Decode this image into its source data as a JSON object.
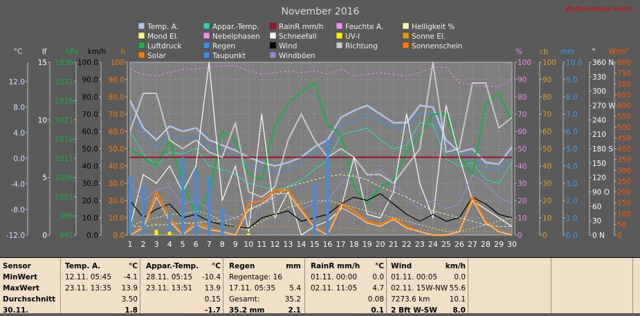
{
  "header": {
    "title": "November 2016",
    "corner_text": "Wetterstation Helm"
  },
  "legend": [
    {
      "label": "Temp. A.",
      "color": "#b0c4f0"
    },
    {
      "label": "Appar.-Temp.",
      "color": "#2ad4b0"
    },
    {
      "label": "RainR mm/h",
      "color": "#a0102a"
    },
    {
      "label": "Feuchte A.",
      "color": "#f08cf0"
    },
    {
      "label": "Helligkeit %",
      "color": "#ffffb0"
    },
    {
      "label": "Mond El.",
      "color": "#ffff88"
    },
    {
      "label": "Nebelphasen",
      "color": "#f08cf0"
    },
    {
      "label": "Schneefall",
      "color": "#ffffff"
    },
    {
      "label": "UV-I",
      "color": "#ffee00"
    },
    {
      "label": "Sonne El.",
      "color": "#e09a10"
    },
    {
      "label": "Luftdruck",
      "color": "#18b048"
    },
    {
      "label": "Regen",
      "color": "#3a8ee8"
    },
    {
      "label": "Wind",
      "color": "#000000"
    },
    {
      "label": "Richtung",
      "color": "#c8c8c8"
    },
    {
      "label": "Sonnenschein",
      "color": "#ff7a00"
    },
    {
      "label": "Solar",
      "color": "#ff7a00"
    },
    {
      "label": "Taupunkt",
      "color": "#3a8ee8"
    },
    {
      "label": "Windböen",
      "color": "#8c8cd0"
    }
  ],
  "axes": {
    "temp": {
      "unit": "°C",
      "color": "#cce0ff",
      "ticks": [
        "12.0",
        "8.0",
        "4.0",
        "0.0",
        "-4.0",
        "-8.0",
        "-12.0"
      ]
    },
    "lf": {
      "unit": "lf",
      "color": "#ffffff",
      "ticks": [
        "15",
        "10",
        "5",
        "0"
      ]
    },
    "hpa": {
      "unit": "hPa",
      "color": "#18b048",
      "ticks": [
        "1036",
        "1031",
        "1026",
        "1021",
        "1016",
        "1011",
        "1006",
        "1001",
        "996",
        "991"
      ]
    },
    "kmh": {
      "unit": "km/h",
      "color": "#000000",
      "ticks": [
        "100.0",
        "90.0",
        "80.0",
        "70.0",
        "60.0",
        "50.0",
        "40.0",
        "30.0",
        "20.0",
        "10.0",
        "0.0"
      ]
    },
    "h": {
      "unit": "h",
      "color": "#ff7a00",
      "ticks": [
        "100",
        "90.0",
        "80.0",
        "70.0",
        "60.0",
        "50.0",
        "40.0",
        "30.0",
        "20.0",
        "10.0",
        "0.0"
      ]
    },
    "pct": {
      "unit": "%",
      "color": "#f08cf0",
      "ticks": [
        "100",
        "90",
        "80",
        "70",
        "60",
        "50",
        "40",
        "30",
        "20",
        "10",
        "0"
      ]
    },
    "cb": {
      "unit": "cb",
      "color": "#e0a020",
      "ticks": [
        "100",
        "90",
        "80",
        "70",
        "60",
        "50",
        "40",
        "30",
        "20",
        "10",
        "0"
      ]
    },
    "mm": {
      "unit": "mm",
      "color": "#3a9ef0",
      "ticks": [
        "10.0",
        "9.0",
        "8.0",
        "7.0",
        "6.0",
        "5.0",
        "4.0",
        "3.0",
        "2.0",
        "1.0",
        "0.0"
      ]
    },
    "deg": {
      "unit": "°",
      "color": "#ffffff",
      "ticks": [
        "360 N",
        "330",
        "300",
        "270 W",
        "240",
        "210",
        "180 S",
        "150",
        "120",
        "90 O",
        "60",
        "30",
        "0 N"
      ]
    },
    "wm2": {
      "unit": "W/m²",
      "color": "#ff5a00",
      "ticks": [
        "800",
        "750",
        "700",
        "650",
        "600",
        "550",
        "500",
        "450",
        "400",
        "350",
        "300",
        "250",
        "200",
        "150",
        "100",
        "50",
        "0"
      ]
    }
  },
  "chart_data": {
    "type": "line",
    "title": "November 2016",
    "x": [
      "1",
      "2",
      "3",
      "4",
      "5",
      "6",
      "7",
      "8",
      "9",
      "10",
      "11",
      "12",
      "13",
      "14",
      "15",
      "16",
      "17",
      "18",
      "19",
      "20",
      "21",
      "22",
      "23",
      "24",
      "25",
      "26",
      "27",
      "28",
      "29",
      "30"
    ],
    "y_scale": [
      0,
      100
    ],
    "series": [
      {
        "name": "Temp. A.",
        "color": "#b0c4f0",
        "values": [
          78,
          62,
          55,
          63,
          60,
          62,
          55,
          52,
          49,
          45,
          42,
          40,
          42,
          45,
          51,
          55,
          68,
          72,
          75,
          70,
          65,
          65,
          75,
          74,
          55,
          48,
          50,
          42,
          41,
          51
        ]
      },
      {
        "name": "Taupunkt",
        "color": "#3a8ee8",
        "values": [
          70,
          58,
          50,
          58,
          55,
          57,
          50,
          48,
          45,
          40,
          38,
          36,
          38,
          42,
          48,
          52,
          63,
          66,
          70,
          66,
          62,
          62,
          71,
          70,
          50,
          45,
          46,
          38,
          38,
          47
        ]
      },
      {
        "name": "Appar.-Temp.",
        "color": "#2ad4b0",
        "values": [
          60,
          47,
          40,
          48,
          47,
          50,
          40,
          38,
          35,
          30,
          28,
          26,
          28,
          32,
          38,
          43,
          58,
          60,
          62,
          55,
          50,
          52,
          65,
          64,
          44,
          40,
          42,
          32,
          30,
          42
        ]
      },
      {
        "name": "Luftdruck",
        "color": "#18b048",
        "values": [
          50,
          45,
          40,
          55,
          30,
          12,
          25,
          60,
          55,
          35,
          32,
          63,
          76,
          83,
          88,
          64,
          58,
          28,
          18,
          28,
          32,
          48,
          58,
          70,
          70,
          46,
          35,
          76,
          82,
          66
        ]
      },
      {
        "name": "Feuchte A.",
        "color": "#f08cf0",
        "values": [
          96,
          93,
          92,
          94,
          96,
          96,
          97,
          98,
          98,
          95,
          93,
          94,
          95,
          94,
          95,
          93,
          96,
          92,
          93,
          94,
          93,
          92,
          94,
          97,
          97,
          88,
          87,
          86,
          86,
          90
        ]
      },
      {
        "name": "RainR mm/h",
        "color": "#a0102a",
        "values": [
          45,
          45,
          45,
          45,
          45,
          45,
          45,
          45,
          45,
          45,
          45,
          45,
          45,
          45,
          45,
          45,
          45,
          45,
          45,
          45,
          45,
          45,
          45,
          45,
          45,
          45,
          45,
          45,
          45,
          45
        ]
      },
      {
        "name": "Richtung",
        "color": "#c8c8c8",
        "values": [
          60,
          82,
          82,
          55,
          50,
          55,
          48,
          45,
          65,
          25,
          22,
          28,
          55,
          70,
          55,
          45,
          50,
          45,
          35,
          35,
          30,
          40,
          50,
          100,
          48,
          50,
          88,
          88,
          62,
          68
        ]
      },
      {
        "name": "Schneefall",
        "color": "#ffffff",
        "values": [
          5,
          35,
          30,
          40,
          25,
          40,
          100,
          20,
          40,
          2,
          70,
          10,
          25,
          0,
          5,
          8,
          15,
          45,
          12,
          10,
          25,
          70,
          30,
          10,
          75,
          45,
          20,
          15,
          10,
          5
        ]
      },
      {
        "name": "Wind",
        "color": "#000000",
        "values": [
          20,
          10,
          15,
          18,
          10,
          12,
          8,
          6,
          5,
          4,
          10,
          12,
          14,
          8,
          10,
          12,
          18,
          22,
          20,
          24,
          18,
          12,
          8,
          12,
          8,
          10,
          22,
          18,
          12,
          10
        ]
      },
      {
        "name": "Windböen",
        "color": "#8c8cd0",
        "values": [
          30,
          20,
          26,
          28,
          18,
          20,
          15,
          12,
          10,
          8,
          18,
          20,
          24,
          15,
          18,
          20,
          30,
          35,
          32,
          38,
          30,
          22,
          15,
          20,
          15,
          18,
          35,
          30,
          22,
          18
        ]
      },
      {
        "name": "Sonnenschein",
        "color": "#ff7a00",
        "values": [
          0,
          5,
          25,
          10,
          0,
          8,
          4,
          2,
          0,
          18,
          20,
          26,
          26,
          15,
          5,
          0,
          18,
          14,
          8,
          6,
          10,
          5,
          2,
          0,
          0,
          2,
          22,
          8,
          2,
          0
        ]
      },
      {
        "name": "Solar",
        "color": "#ff7a00",
        "values": [
          0,
          4,
          22,
          8,
          0,
          6,
          3,
          2,
          0,
          15,
          18,
          24,
          24,
          14,
          4,
          0,
          16,
          12,
          7,
          5,
          9,
          4,
          2,
          0,
          0,
          2,
          20,
          7,
          2,
          0
        ]
      },
      {
        "name": "Sonne El.",
        "color": "#e09a10",
        "values": [
          8,
          8,
          7,
          7,
          7,
          6,
          6,
          6,
          5,
          5,
          5,
          5,
          5,
          4,
          4,
          4,
          4,
          4,
          3,
          3,
          3,
          3,
          3,
          3,
          3,
          2,
          2,
          2,
          2,
          2
        ]
      },
      {
        "name": "Mond El.",
        "color": "#ffff88",
        "values": [
          5,
          8,
          10,
          12,
          12,
          14,
          12,
          8,
          5,
          3,
          8,
          12,
          16,
          18,
          20,
          20,
          18,
          16,
          14,
          12,
          10,
          8,
          6,
          4,
          2,
          2,
          4,
          6,
          8,
          10
        ]
      },
      {
        "name": "Helligkeit %",
        "color": "#ffffb0",
        "values": [
          5,
          5,
          6,
          6,
          7,
          7,
          8,
          8,
          10,
          14,
          18,
          22,
          28,
          30,
          32,
          34,
          35,
          34,
          32,
          28,
          25,
          22,
          18,
          14,
          12,
          10,
          8,
          6,
          5,
          5
        ]
      },
      {
        "name": "Regen",
        "color": "#3a8ee8",
        "type": "bar",
        "values": [
          34,
          29,
          0,
          13,
          45,
          38,
          34,
          16,
          0,
          0,
          0,
          0,
          0,
          0,
          30,
          55,
          0,
          0,
          0,
          0,
          0,
          0,
          0,
          0,
          0,
          0,
          0,
          0,
          0,
          0
        ]
      },
      {
        "name": "UV-I",
        "color": "#ffee00",
        "type": "bar",
        "values": [
          0,
          0,
          3,
          2,
          0,
          0,
          0,
          0,
          0,
          1,
          0,
          0,
          0,
          0,
          0,
          0,
          0,
          0,
          0,
          0,
          0,
          0,
          0,
          0,
          0,
          0,
          0,
          0,
          0,
          0
        ]
      }
    ],
    "grid": true
  },
  "stats": {
    "sensor": {
      "header": "Sensor",
      "rows": [
        "MinWert",
        "MaxWert",
        "Durchschnitt",
        "30.11."
      ]
    },
    "temp": {
      "header": "Temp. A.",
      "unit": "°C",
      "rows": [
        [
          "12.11.  05:45",
          "-4.1"
        ],
        [
          "23.11.  13:35",
          "13.9"
        ],
        [
          "",
          "3.50"
        ],
        [
          "",
          "1.8"
        ]
      ]
    },
    "appar": {
      "header": "Appar.-Temp.",
      "unit": "°C",
      "rows": [
        [
          "28.11.  05:15",
          "-10.4"
        ],
        [
          "23.11.  13:51",
          "13.9"
        ],
        [
          "",
          "0.15"
        ],
        [
          "",
          "-1.7"
        ]
      ]
    },
    "regen": {
      "header": "Regen",
      "unit": "mm",
      "rows": [
        [
          "Regentage: 16",
          ""
        ],
        [
          "17.11.  05:35",
          "5.4"
        ],
        [
          "Gesamt:",
          "35.2"
        ],
        [
          "35.2 mm",
          "2.1"
        ]
      ]
    },
    "rainr": {
      "header": "RainR mm/h",
      "unit": "°C",
      "rows": [
        [
          "01.11.  00:00",
          "0.0"
        ],
        [
          "02.11.  11:05",
          "4.7"
        ],
        [
          "",
          "0.08"
        ],
        [
          "",
          "0.1"
        ]
      ]
    },
    "wind": {
      "header": "Wind",
      "unit": "km/h",
      "rows": [
        [
          "01.11.  00:05",
          "0.0"
        ],
        [
          "02.11.  15W-NW",
          "55.6"
        ],
        [
          "7273.6 km",
          "10.1"
        ],
        [
          "2 Bft W-SW",
          "8.0"
        ]
      ]
    }
  }
}
